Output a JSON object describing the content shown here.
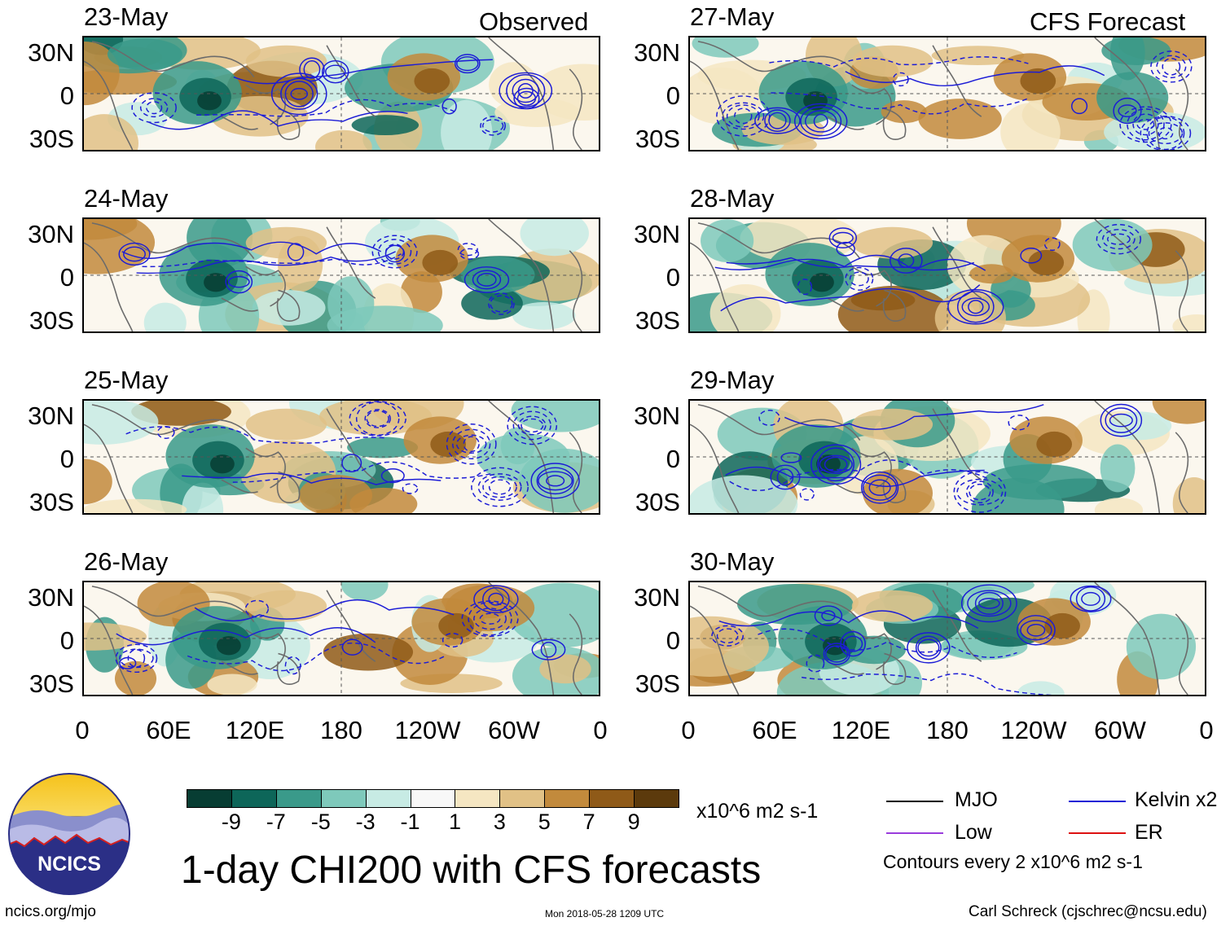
{
  "columns": {
    "left_title": "Observed",
    "right_title": "CFS Forecast"
  },
  "panels": [
    {
      "date": "23-May",
      "column": "left"
    },
    {
      "date": "24-May",
      "column": "left"
    },
    {
      "date": "25-May",
      "column": "left"
    },
    {
      "date": "26-May",
      "column": "left"
    },
    {
      "date": "27-May",
      "column": "right"
    },
    {
      "date": "28-May",
      "column": "right"
    },
    {
      "date": "29-May",
      "column": "right"
    },
    {
      "date": "30-May",
      "column": "right"
    }
  ],
  "lat_labels": [
    "30N",
    "0",
    "30S"
  ],
  "lon_labels": [
    "0",
    "60E",
    "120E",
    "180",
    "120W",
    "60W",
    "0"
  ],
  "colorbar": {
    "colors": [
      "#073d33",
      "#0d6659",
      "#3a9a8a",
      "#7ec9bb",
      "#c7ebe4",
      "#f8f8f8",
      "#f5e6c2",
      "#e1c186",
      "#c28a3c",
      "#8f5a18",
      "#5c3a0c"
    ],
    "tick_labels": [
      "-9",
      "-7",
      "-5",
      "-3",
      "-1",
      "1",
      "3",
      "5",
      "7",
      "9"
    ],
    "units": "x10^6 m2 s-1"
  },
  "title": "1-day CHI200 with CFS forecasts",
  "legend": {
    "items": [
      {
        "label": "MJO",
        "color": "#000000"
      },
      {
        "label": "Kelvin x2",
        "color": "#1c1cd6"
      },
      {
        "label": "Low",
        "color": "#9a3cdc"
      },
      {
        "label": "ER",
        "color": "#dd1111"
      }
    ],
    "contour_note": "Contours every 2 x10^6 m2 s-1"
  },
  "logo": {
    "text": "NCICS"
  },
  "footer": {
    "left": "ncics.org/mjo",
    "center": "Mon 2018-05-28 1209 UTC",
    "right": "Carl Schreck (cjschrec@ncsu.edu)"
  },
  "colors": {
    "contour": "#1c1cd6",
    "coast": "#6b6b6b",
    "dry": "#c28a3c",
    "wet": "#3a9a8a"
  }
}
